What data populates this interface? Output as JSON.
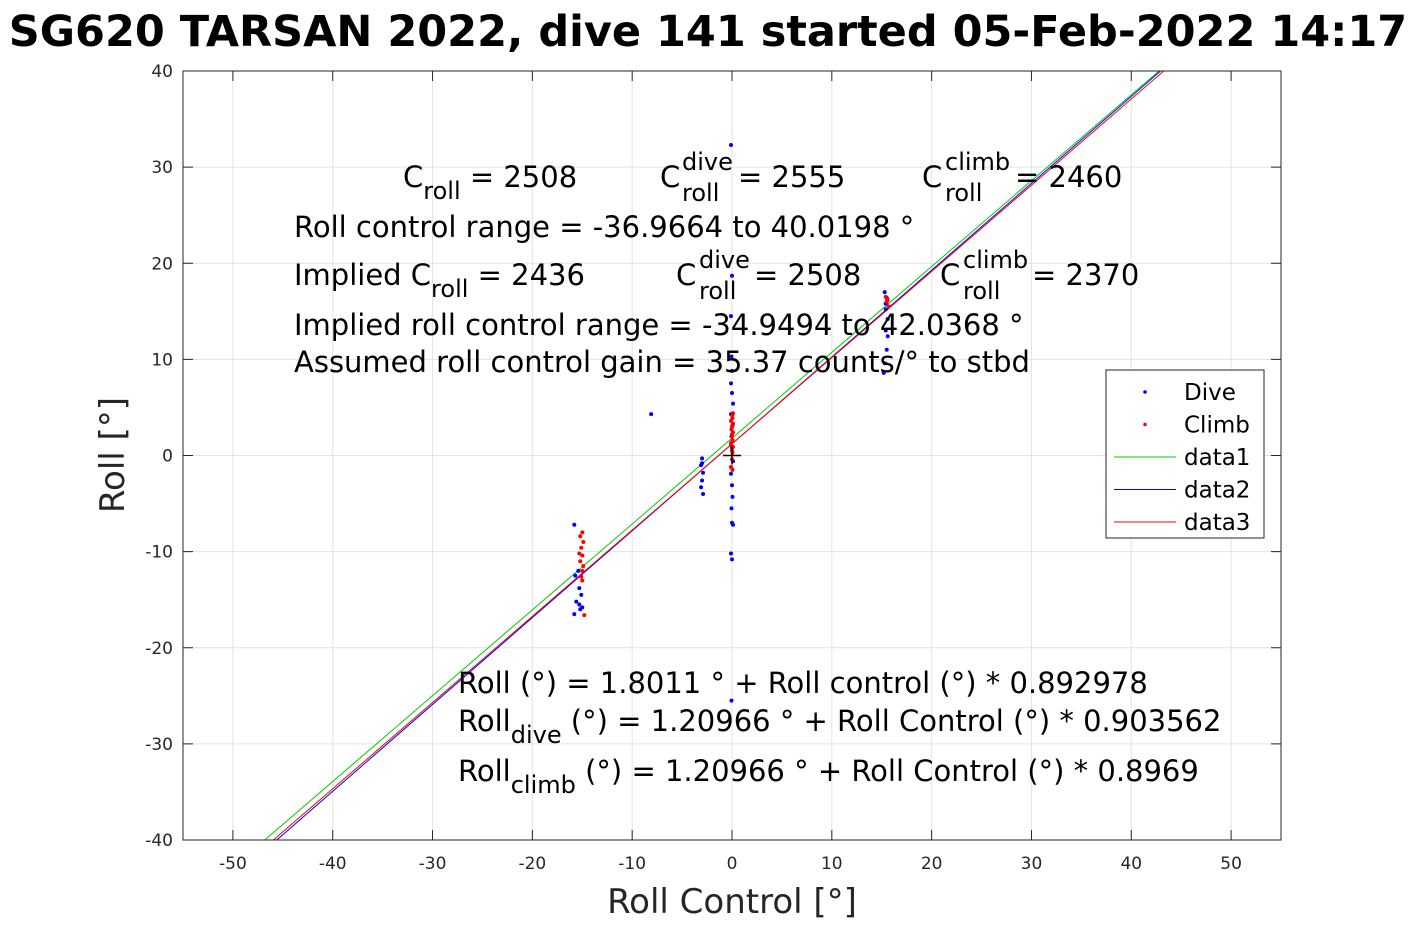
{
  "chart_data": {
    "type": "scatter",
    "title": "SG620 TARSAN 2022, dive 141 started 05-Feb-2022 14:17",
    "xlabel": "Roll Control [°]",
    "ylabel": "Roll [°]",
    "xlim": [
      -55,
      55
    ],
    "ylim": [
      -40,
      40
    ],
    "xticks": [
      -50,
      -40,
      -30,
      -20,
      -10,
      0,
      10,
      20,
      30,
      40,
      50
    ],
    "yticks": [
      -40,
      -30,
      -20,
      -10,
      0,
      10,
      20,
      30,
      40
    ],
    "grid": true,
    "legend_position": "east",
    "series": [
      {
        "name": "Dive",
        "kind": "points",
        "color": "#0000ff",
        "points": [
          [
            -15.8,
            -7.2
          ],
          [
            -15.7,
            -12.5
          ],
          [
            -15.6,
            -15.2
          ],
          [
            -15.8,
            -16.5
          ],
          [
            -15.3,
            -15.5
          ],
          [
            -15.2,
            -16.0
          ],
          [
            -15.1,
            -14.5
          ],
          [
            -15.3,
            -13.8
          ],
          [
            -15.0,
            -15.8
          ],
          [
            -15.4,
            -12.0
          ],
          [
            -8.1,
            4.3
          ],
          [
            -3.0,
            -0.3
          ],
          [
            -3.1,
            -1.0
          ],
          [
            -2.9,
            -1.8
          ],
          [
            -3.0,
            -2.6
          ],
          [
            -3.1,
            -3.3
          ],
          [
            -2.9,
            -4.0
          ],
          [
            -3.0,
            -0.8
          ],
          [
            -0.1,
            32.3
          ],
          [
            0.0,
            18.7
          ],
          [
            -0.1,
            14.5
          ],
          [
            -0.05,
            10.3
          ],
          [
            0.0,
            8.8
          ],
          [
            -0.1,
            7.5
          ],
          [
            0.0,
            6.5
          ],
          [
            0.1,
            5.4
          ],
          [
            -0.1,
            4.3
          ],
          [
            0.05,
            3.1
          ],
          [
            -0.05,
            2.0
          ],
          [
            0.0,
            0.8
          ],
          [
            0.1,
            -0.6
          ],
          [
            -0.1,
            -1.9
          ],
          [
            0.0,
            -3.1
          ],
          [
            0.05,
            -4.3
          ],
          [
            -0.05,
            -5.5
          ],
          [
            0.0,
            -7.0
          ],
          [
            0.1,
            -7.2
          ],
          [
            -0.1,
            -10.2
          ],
          [
            0.0,
            -10.8
          ],
          [
            -0.05,
            -25.5
          ],
          [
            15.3,
            17.0
          ],
          [
            15.5,
            16.4
          ],
          [
            15.4,
            15.2
          ],
          [
            15.6,
            14.2
          ],
          [
            15.4,
            13.0
          ],
          [
            15.5,
            11.0
          ],
          [
            15.3,
            9.6
          ],
          [
            15.2,
            8.6
          ],
          [
            15.6,
            12.4
          ],
          [
            15.4,
            15.8
          ]
        ]
      },
      {
        "name": "Climb",
        "kind": "points",
        "color": "#ff0000",
        "points": [
          [
            -15.0,
            -8.0
          ],
          [
            -15.2,
            -8.4
          ],
          [
            -14.9,
            -9.0
          ],
          [
            -15.1,
            -9.6
          ],
          [
            -15.0,
            -10.4
          ],
          [
            -15.2,
            -11.0
          ],
          [
            -14.9,
            -11.5
          ],
          [
            -15.0,
            -12.0
          ],
          [
            -15.1,
            -12.6
          ],
          [
            -15.0,
            -13.0
          ],
          [
            -14.8,
            -16.6
          ],
          [
            -15.3,
            -10.2
          ],
          [
            0.0,
            0.5
          ],
          [
            0.1,
            0.9
          ],
          [
            -0.1,
            1.3
          ],
          [
            0.05,
            1.6
          ],
          [
            0.0,
            2.0
          ],
          [
            0.1,
            2.4
          ],
          [
            -0.05,
            2.7
          ],
          [
            0.0,
            3.0
          ],
          [
            0.1,
            3.3
          ],
          [
            -0.1,
            3.6
          ],
          [
            0.05,
            3.9
          ],
          [
            0.0,
            4.2
          ],
          [
            0.1,
            4.4
          ],
          [
            -0.1,
            1.1
          ],
          [
            0.0,
            2.2
          ],
          [
            0.05,
            0.3
          ],
          [
            0.0,
            -0.4
          ],
          [
            -0.1,
            -1.2
          ],
          [
            0.05,
            -1.5
          ],
          [
            15.5,
            16.0
          ],
          [
            15.7,
            15.5
          ],
          [
            15.4,
            16.5
          ],
          [
            15.6,
            16.2
          ]
        ]
      },
      {
        "name": "data1",
        "kind": "line",
        "color": "#00cc00",
        "intercept": 1.8011,
        "slope": 0.892978
      },
      {
        "name": "data2",
        "kind": "line",
        "color": "#0000ff",
        "intercept": 1.20966,
        "slope": 0.903562
      },
      {
        "name": "data3",
        "kind": "line",
        "color": "#ff0000",
        "intercept": 1.20966,
        "slope": 0.8969
      }
    ],
    "marker_cross": [
      0,
      0
    ],
    "annotations": {
      "c_roll": "C",
      "c_roll_sub": "roll",
      "c_roll_value": " = 2508",
      "c_dive_sup": "dive",
      "c_dive_sub": "roll",
      "c_dive_value": " = 2555",
      "c_climb_sup": "climb",
      "c_climb_sub": "roll",
      "c_climb_value": " = 2460",
      "range_line": "Roll control range = -36.9664 to 40.0198 °",
      "implied_prefix": "Implied C",
      "implied_sub": "roll",
      "implied_value": " = 2436",
      "implied_dive_sup": "dive",
      "implied_dive_sub": "roll",
      "implied_dive_value": " = 2508",
      "implied_climb_sup": "climb",
      "implied_climb_sub": "roll",
      "implied_climb_value": " = 2370",
      "implied_range_line": "Implied roll control range = -34.9494 to 42.0368 °",
      "gain_line": "Assumed roll control gain = 35.37 counts/° to stbd",
      "fit_line": "Roll (°) = 1.8011 ° + Roll control (°) * 0.892978",
      "fit_dive_prefix": "Roll",
      "fit_dive_sub": "dive",
      "fit_dive_rest": " (°) = 1.20966 ° + Roll Control (°) * 0.903562",
      "fit_climb_prefix": "Roll",
      "fit_climb_sub": "climb",
      "fit_climb_rest": " (°) = 1.20966 ° + Roll Control (°) * 0.8969"
    }
  }
}
